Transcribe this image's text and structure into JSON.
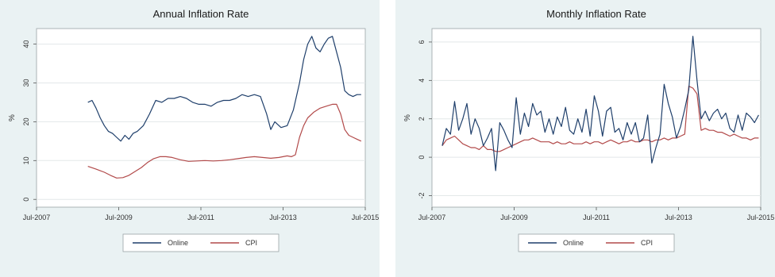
{
  "chart_data": [
    {
      "type": "line",
      "title": "Annual Inflation Rate",
      "xlabel": "",
      "ylabel": "%",
      "xlim": [
        2007.5,
        2015.5
      ],
      "ylim": [
        -2,
        44
      ],
      "x_ticks": [
        {
          "value": 2007.5,
          "label": "Jul-2007"
        },
        {
          "value": 2009.5,
          "label": "Jul-2009"
        },
        {
          "value": 2011.5,
          "label": "Jul-2011"
        },
        {
          "value": 2013.5,
          "label": "Jul-2013"
        },
        {
          "value": 2015.5,
          "label": "Jul-2015"
        }
      ],
      "y_ticks": [
        0,
        10,
        20,
        30,
        40
      ],
      "grid": true,
      "legend": "bottom",
      "series": [
        {
          "name": "Online",
          "color": "#1f3f6b",
          "x": [
            2008.75,
            2008.85,
            2008.95,
            2009.05,
            2009.15,
            2009.25,
            2009.35,
            2009.45,
            2009.55,
            2009.65,
            2009.75,
            2009.85,
            2009.95,
            2010.1,
            2010.25,
            2010.4,
            2010.55,
            2010.7,
            2010.85,
            2011.0,
            2011.15,
            2011.3,
            2011.45,
            2011.6,
            2011.75,
            2011.9,
            2012.05,
            2012.2,
            2012.35,
            2012.5,
            2012.65,
            2012.8,
            2012.95,
            2013.1,
            2013.2,
            2013.3,
            2013.45,
            2013.6,
            2013.75,
            2013.9,
            2014.0,
            2014.1,
            2014.2,
            2014.3,
            2014.4,
            2014.5,
            2014.6,
            2014.7,
            2014.8,
            2014.9,
            2015.0,
            2015.1,
            2015.2,
            2015.3,
            2015.4
          ],
          "values": [
            25,
            25.5,
            23.5,
            21,
            19,
            17.5,
            17,
            16,
            15,
            16.5,
            15.5,
            17,
            17.5,
            19,
            22,
            25.5,
            25,
            26,
            26,
            26.5,
            26,
            25,
            24.5,
            24.5,
            24,
            25,
            25.5,
            25.5,
            26,
            27,
            26.5,
            27,
            26.5,
            22,
            18,
            20,
            18.5,
            19,
            23,
            30,
            36,
            40,
            42,
            39,
            38,
            40,
            41.5,
            42,
            38,
            34,
            28,
            27,
            26.5,
            27,
            27
          ]
        },
        {
          "name": "CPI",
          "color": "#b24a4a",
          "x": [
            2008.75,
            2008.95,
            2009.15,
            2009.3,
            2009.45,
            2009.6,
            2009.75,
            2009.9,
            2010.05,
            2010.2,
            2010.35,
            2010.5,
            2010.65,
            2010.8,
            2011.0,
            2011.2,
            2011.4,
            2011.6,
            2011.8,
            2012.0,
            2012.2,
            2012.4,
            2012.6,
            2012.8,
            2013.0,
            2013.2,
            2013.4,
            2013.6,
            2013.7,
            2013.8,
            2013.9,
            2014.0,
            2014.1,
            2014.25,
            2014.4,
            2014.55,
            2014.7,
            2014.8,
            2014.9,
            2015.0,
            2015.1,
            2015.2,
            2015.3,
            2015.4
          ],
          "values": [
            8.5,
            7.8,
            7,
            6.2,
            5.5,
            5.6,
            6.2,
            7.2,
            8.2,
            9.5,
            10.5,
            11,
            11,
            10.8,
            10.2,
            9.8,
            9.9,
            10,
            9.9,
            10,
            10.2,
            10.5,
            10.8,
            11,
            10.8,
            10.6,
            10.8,
            11.2,
            11,
            11.5,
            16,
            19,
            21,
            22.5,
            23.5,
            24,
            24.5,
            24.5,
            22,
            18,
            16.5,
            16,
            15.5,
            15
          ]
        }
      ]
    },
    {
      "type": "line",
      "title": "Monthly Inflation Rate",
      "xlabel": "",
      "ylabel": "%",
      "xlim": [
        2007.5,
        2015.5
      ],
      "ylim": [
        -2.6,
        6.7
      ],
      "x_ticks": [
        {
          "value": 2007.5,
          "label": "Jul-2007"
        },
        {
          "value": 2009.5,
          "label": "Jul-2009"
        },
        {
          "value": 2011.5,
          "label": "Jul-2011"
        },
        {
          "value": 2013.5,
          "label": "Jul-2013"
        },
        {
          "value": 2015.5,
          "label": "Jul-2015"
        }
      ],
      "y_ticks": [
        -2,
        0,
        2,
        4,
        6
      ],
      "grid": true,
      "legend": "bottom",
      "series": [
        {
          "name": "Online",
          "color": "#1f3f6b",
          "x": [
            2007.75,
            2007.85,
            2007.95,
            2008.05,
            2008.15,
            2008.25,
            2008.35,
            2008.45,
            2008.55,
            2008.65,
            2008.75,
            2008.85,
            2008.95,
            2009.05,
            2009.15,
            2009.25,
            2009.35,
            2009.45,
            2009.55,
            2009.65,
            2009.75,
            2009.85,
            2009.95,
            2010.05,
            2010.15,
            2010.25,
            2010.35,
            2010.45,
            2010.55,
            2010.65,
            2010.75,
            2010.85,
            2010.95,
            2011.05,
            2011.15,
            2011.25,
            2011.35,
            2011.45,
            2011.55,
            2011.65,
            2011.75,
            2011.85,
            2011.95,
            2012.05,
            2012.15,
            2012.25,
            2012.35,
            2012.45,
            2012.55,
            2012.65,
            2012.75,
            2012.85,
            2012.95,
            2013.05,
            2013.15,
            2013.25,
            2013.35,
            2013.45,
            2013.55,
            2013.65,
            2013.75,
            2013.85,
            2013.95,
            2014.05,
            2014.15,
            2014.25,
            2014.35,
            2014.45,
            2014.55,
            2014.65,
            2014.75,
            2014.85,
            2014.95,
            2015.05,
            2015.15,
            2015.25,
            2015.35,
            2015.45
          ],
          "values": [
            0.6,
            1.5,
            1.2,
            2.9,
            1.4,
            2.0,
            2.8,
            1.2,
            2.0,
            1.5,
            0.6,
            1.0,
            1.5,
            -0.7,
            1.8,
            1.4,
            0.9,
            0.5,
            3.1,
            1.2,
            2.3,
            1.6,
            2.8,
            2.2,
            2.4,
            1.3,
            2.0,
            1.2,
            2.1,
            1.6,
            2.6,
            1.4,
            1.2,
            2.0,
            1.3,
            2.5,
            1.1,
            3.2,
            2.4,
            1.1,
            2.4,
            2.6,
            1.3,
            1.5,
            0.9,
            1.8,
            1.2,
            1.8,
            0.8,
            1.0,
            2.2,
            -0.3,
            0.5,
            1.2,
            3.8,
            2.8,
            2.1,
            1.0,
            1.6,
            2.5,
            3.5,
            6.3,
            4.0,
            2.0,
            2.4,
            1.9,
            2.3,
            2.5,
            2.0,
            2.3,
            1.5,
            1.3,
            2.2,
            1.4,
            2.3,
            2.1,
            1.8,
            2.2
          ]
        },
        {
          "name": "CPI",
          "color": "#b24a4a",
          "x": [
            2007.75,
            2007.85,
            2007.95,
            2008.05,
            2008.15,
            2008.25,
            2008.35,
            2008.45,
            2008.55,
            2008.65,
            2008.75,
            2008.85,
            2008.95,
            2009.05,
            2009.15,
            2009.25,
            2009.35,
            2009.45,
            2009.55,
            2009.65,
            2009.75,
            2009.85,
            2009.95,
            2010.05,
            2010.15,
            2010.25,
            2010.35,
            2010.45,
            2010.55,
            2010.65,
            2010.75,
            2010.85,
            2010.95,
            2011.05,
            2011.15,
            2011.25,
            2011.35,
            2011.45,
            2011.55,
            2011.65,
            2011.75,
            2011.85,
            2011.95,
            2012.05,
            2012.15,
            2012.25,
            2012.35,
            2012.45,
            2012.55,
            2012.65,
            2012.75,
            2012.85,
            2012.95,
            2013.05,
            2013.15,
            2013.25,
            2013.35,
            2013.45,
            2013.55,
            2013.65,
            2013.75,
            2013.85,
            2013.95,
            2014.05,
            2014.15,
            2014.25,
            2014.35,
            2014.45,
            2014.55,
            2014.65,
            2014.75,
            2014.85,
            2014.95,
            2015.05,
            2015.15,
            2015.25,
            2015.35,
            2015.45
          ],
          "values": [
            0.6,
            0.9,
            1.0,
            1.1,
            0.9,
            0.7,
            0.6,
            0.5,
            0.5,
            0.4,
            0.6,
            0.4,
            0.4,
            0.3,
            0.3,
            0.4,
            0.5,
            0.6,
            0.7,
            0.8,
            0.9,
            0.9,
            1.0,
            0.9,
            0.8,
            0.8,
            0.8,
            0.7,
            0.8,
            0.7,
            0.7,
            0.8,
            0.7,
            0.7,
            0.7,
            0.8,
            0.7,
            0.8,
            0.8,
            0.7,
            0.8,
            0.9,
            0.8,
            0.7,
            0.8,
            0.8,
            0.9,
            0.8,
            0.8,
            0.9,
            0.9,
            0.8,
            0.9,
            0.9,
            1.0,
            0.9,
            1.0,
            1.0,
            1.1,
            1.2,
            3.7,
            3.6,
            3.3,
            1.4,
            1.5,
            1.4,
            1.4,
            1.3,
            1.3,
            1.2,
            1.1,
            1.2,
            1.1,
            1.0,
            1.0,
            0.9,
            1.0,
            1.0
          ]
        }
      ]
    }
  ]
}
